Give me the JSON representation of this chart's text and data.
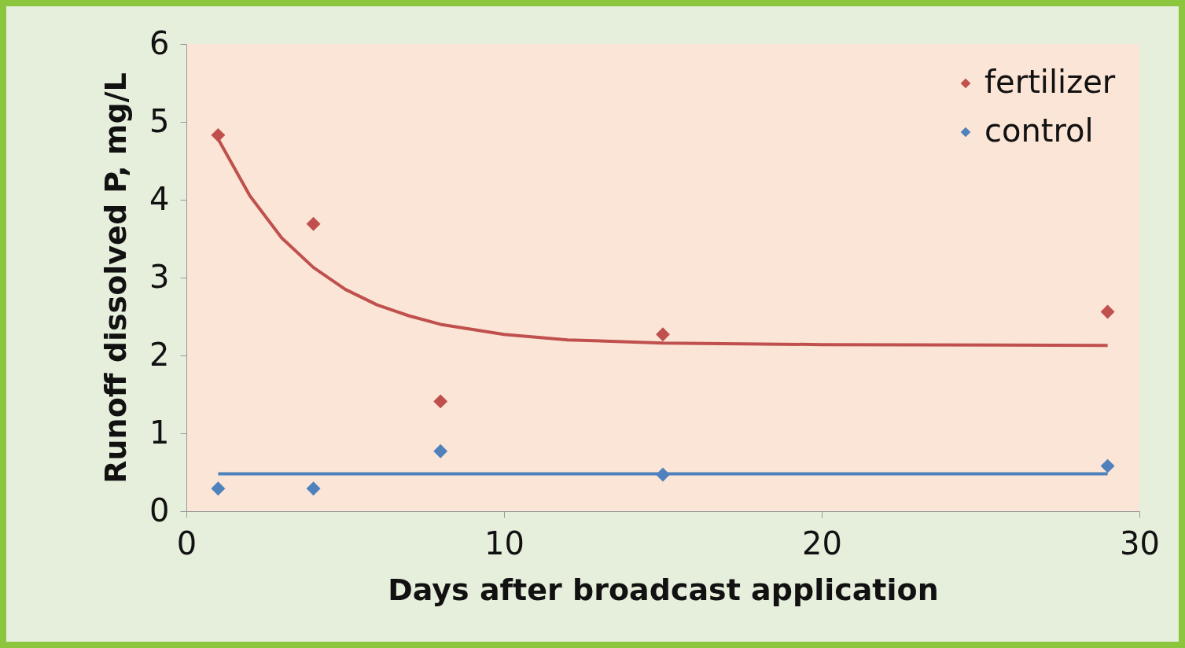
{
  "chart_data": {
    "type": "scatter",
    "xlabel": "Days after broadcast application",
    "ylabel": "Runoff dissolved P, mg/L",
    "xlim": [
      0,
      30
    ],
    "xticks": [
      0,
      10,
      20,
      30
    ],
    "ylim": [
      0,
      6
    ],
    "yticks": [
      0,
      1,
      2,
      3,
      4,
      5,
      6
    ],
    "legend": "top right",
    "series": [
      {
        "name": "fertilizer",
        "color": "#c0504d",
        "marker": "diamond",
        "x": [
          1,
          4,
          8,
          15,
          29
        ],
        "values": [
          4.83,
          3.69,
          1.41,
          2.27,
          2.56
        ]
      },
      {
        "name": "control",
        "color": "#4f81bd",
        "marker": "diamond",
        "x": [
          1,
          4,
          8,
          15,
          29
        ],
        "values": [
          0.29,
          0.29,
          0.77,
          0.47,
          0.58
        ]
      },
      {
        "color": "#c0504d",
        "type": "line",
        "marker": "none",
        "line_style": "solid",
        "x": [
          1,
          2,
          3,
          4,
          5,
          6,
          7,
          8,
          10,
          12,
          15,
          20,
          29
        ],
        "values": [
          4.78,
          4.05,
          3.51,
          3.13,
          2.85,
          2.65,
          2.51,
          2.4,
          2.27,
          2.2,
          2.16,
          2.14,
          2.13
        ]
      },
      {
        "color": "#4f81bd",
        "type": "line",
        "marker": "none",
        "line_style": "solid",
        "x": [
          1,
          29
        ],
        "values": [
          0.48,
          0.48
        ]
      }
    ]
  }
}
